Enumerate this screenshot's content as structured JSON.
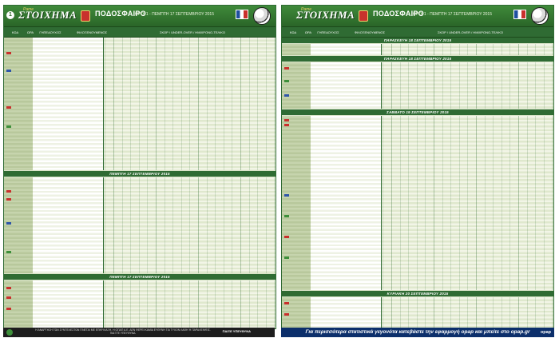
{
  "left_page": {
    "page_number": "1",
    "logo": "ΣΤΟΙΧΗΜΑ",
    "logo_small": "Pame",
    "sport": "ΠΟΔΟΣΦΑΙΡΟ",
    "subtitle": "ΟΡΟΙ 1 - ΠΕΜΠΤΗ 17 ΣΕΠΤΕΜΒΡΙΟΥ 2015",
    "sections": [
      "ΠΕΜΠΤΗ 17 ΣΕΠΤΕΜΒΡΙΟΥ 2015",
      "ΠΕΜΠΤΗ 17 ΣΕΠΤΕΜΒΡΙΟΥ 2015"
    ],
    "footer_text": "Η ΑΝΑΡΤΗΣΗ ΤΩΝ ΣΥΝΤΕΛΕΣΤΩΝ ΓΙΝΕΤΑΙ ΜΕ ΕΠΙΦΥΛΑΞΗ. Η ΟΠΑΠ Α.Ε. ΔΕΝ ΦΕΡΕΙ ΚΑΜΙΑ ΕΥΘΥΝΗ ΓΙΑ ΤΥΧΟΝ ΛΑΘΗ Ή ΠΑΡΑΛΕΙΨΕΙΣ. ΠΑΙΞΤΕ ΥΠΕΥΘΥΝΑ.",
    "footer_brand": "ΠΑΙΞΕ ΥΠΕΥΘΥΝΑ"
  },
  "right_page": {
    "logo": "ΣΤΟΙΧΗΜΑ",
    "logo_small": "Pame",
    "sport": "ΠΟΔΟΣΦΑΙΡΟ",
    "subtitle": "ΟΡΟΙ 1 - ΠΕΜΠΤΗ 17 ΣΕΠΤΕΜΒΡΙΟΥ 2015",
    "sections": [
      "ΠΑΡΑΣΚΕΥΗ 18 ΣΕΠΤΕΜΒΡΙΟΥ 2015",
      "ΠΑΡΑΣΚΕΥΗ 18 ΣΕΠΤΕΜΒΡΙΟΥ 2015",
      "ΣΑΒΒΑΤΟ 19 ΣΕΠΤΕΜΒΡΙΟΥ 2015",
      "ΚΥΡΙΑΚΗ 20 ΣΕΠΤΕΜΒΡΙΟΥ 2015"
    ],
    "footer_text": "Για περισσότερα στατιστικά γεγονότα κατεβάστε την εφαρμογή opap και μπείτε στο opap.gr",
    "footer_brand": "opap"
  },
  "column_headers": {
    "code": "ΚΩΔ",
    "time": "ΩΡΑ",
    "home": "ΓΗΠΕΔΟΥΧΟΣ",
    "away": "ΦΙΛΟΞΕΝΟΥΜΕΝΟΣ",
    "odds": "ΤΕΛΙΚΟ ΑΠΟΤΕΛΕΣΜΑ",
    "markets": "ΣΚΟΡ / UNDER-OVER / ΗΜΙΧΡΟΝΟ-ΤΕΛΙΚΟ"
  }
}
